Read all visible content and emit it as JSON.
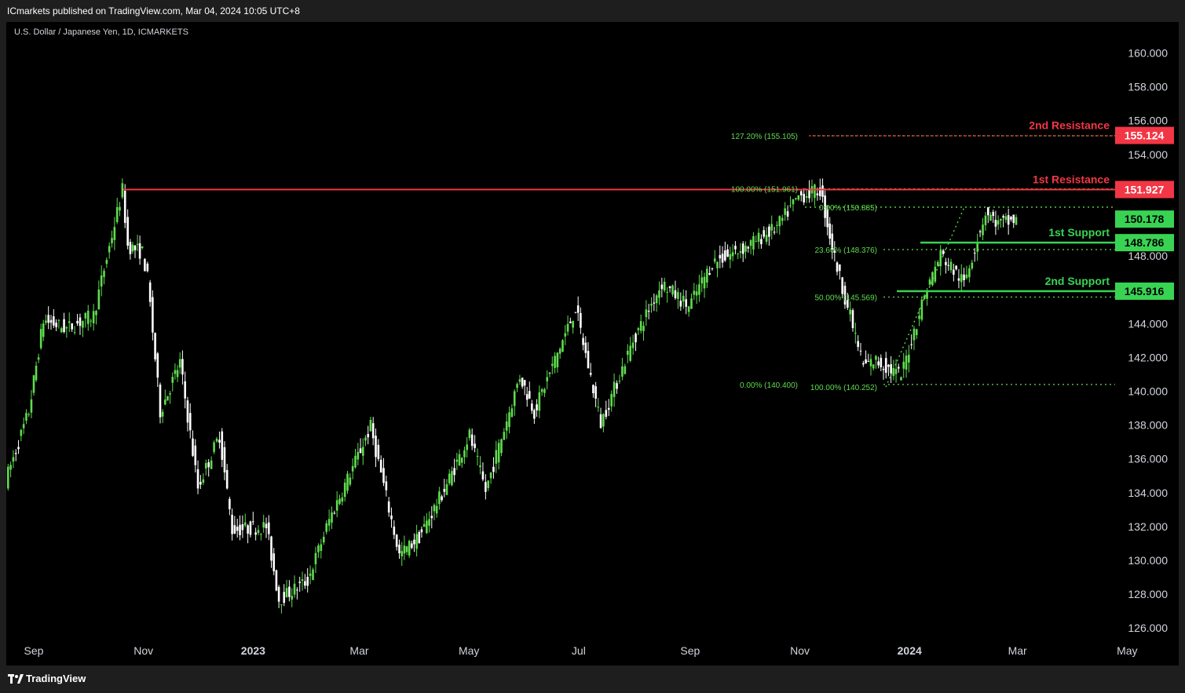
{
  "header": {
    "published": "ICmarkets published on TradingView.com, Mar 04, 2024 10:05 UTC+8"
  },
  "symbol": {
    "title": "U.S. Dollar / Japanese Yen, 1D, ICMARKETS"
  },
  "footer": {
    "brand": "TradingView"
  },
  "colors": {
    "background": "#000000",
    "bull": "#5fdc4e",
    "bear": "#ffffff",
    "resistance": "#f23645",
    "support": "#39d353",
    "fib": "#5fdc4e"
  },
  "chart_data": {
    "type": "candlestick",
    "title": "U.S. Dollar / Japanese Yen, 1D, ICMARKETS",
    "ylim": [
      125.0,
      162.0
    ],
    "y_ticks": [
      "160.000",
      "158.000",
      "156.000",
      "154.000",
      "152.000",
      "150.000",
      "148.000",
      "146.000",
      "144.000",
      "142.000",
      "140.000",
      "138.000",
      "136.000",
      "134.000",
      "132.000",
      "130.000",
      "128.000",
      "126.000"
    ],
    "x_ticks": [
      {
        "label": "Sep",
        "bold": false
      },
      {
        "label": "Nov",
        "bold": false
      },
      {
        "label": "2023",
        "bold": true
      },
      {
        "label": "Mar",
        "bold": false
      },
      {
        "label": "May",
        "bold": false
      },
      {
        "label": "Jul",
        "bold": false
      },
      {
        "label": "Sep",
        "bold": false
      },
      {
        "label": "Nov",
        "bold": false
      },
      {
        "label": "2024",
        "bold": true
      },
      {
        "label": "Mar",
        "bold": false
      },
      {
        "label": "May",
        "bold": false
      }
    ],
    "price_path": [
      [
        "2022-08-17",
        134.7
      ],
      [
        "2022-08-30",
        138.8
      ],
      [
        "2022-09-07",
        144.2
      ],
      [
        "2022-09-20",
        143.7
      ],
      [
        "2022-10-05",
        144.5
      ],
      [
        "2022-10-21",
        151.9
      ],
      [
        "2022-10-24",
        148.6
      ],
      [
        "2022-11-01",
        148.2
      ],
      [
        "2022-11-04",
        146.7
      ],
      [
        "2022-11-11",
        138.8
      ],
      [
        "2022-11-22",
        141.7
      ],
      [
        "2022-12-02",
        134.3
      ],
      [
        "2022-12-14",
        137.4
      ],
      [
        "2022-12-21",
        131.8
      ],
      [
        "2023-01-09",
        132.0
      ],
      [
        "2023-01-16",
        127.7
      ],
      [
        "2023-02-01",
        128.8
      ],
      [
        "2023-02-13",
        132.4
      ],
      [
        "2023-03-01",
        136.2
      ],
      [
        "2023-03-08",
        137.9
      ],
      [
        "2023-03-24",
        130.3
      ],
      [
        "2023-04-04",
        131.4
      ],
      [
        "2023-04-18",
        134.2
      ],
      [
        "2023-05-02",
        137.4
      ],
      [
        "2023-05-11",
        134.1
      ],
      [
        "2023-05-30",
        140.9
      ],
      [
        "2023-06-07",
        138.8
      ],
      [
        "2023-06-30",
        144.9
      ],
      [
        "2023-07-14",
        138.1
      ],
      [
        "2023-08-01",
        143.0
      ],
      [
        "2023-08-17",
        146.4
      ],
      [
        "2023-09-01",
        145.0
      ],
      [
        "2023-09-14",
        147.6
      ],
      [
        "2023-10-04",
        148.6
      ],
      [
        "2023-10-20",
        149.7
      ],
      [
        "2023-11-01",
        151.5
      ],
      [
        "2023-11-13",
        151.9
      ],
      [
        "2023-11-21",
        147.9
      ],
      [
        "2023-12-07",
        141.5
      ],
      [
        "2023-12-14",
        141.8
      ],
      [
        "2023-12-28",
        140.9
      ],
      [
        "2024-01-10",
        145.7
      ],
      [
        "2024-01-19",
        148.1
      ],
      [
        "2024-02-01",
        146.4
      ],
      [
        "2024-02-13",
        150.6
      ],
      [
        "2024-02-20",
        149.9
      ],
      [
        "2024-03-01",
        150.1
      ]
    ],
    "levels": [
      {
        "name": "2nd Resistance",
        "value": 155.124,
        "label": "155.124",
        "kind": "resistance"
      },
      {
        "name": "1st Resistance",
        "value": 151.927,
        "label": "151.927",
        "kind": "resistance"
      },
      {
        "name": "",
        "value": 150.178,
        "label": "150.178",
        "kind": "last"
      },
      {
        "name": "1st Support",
        "value": 148.786,
        "label": "148.786",
        "kind": "support"
      },
      {
        "name": "2nd Support",
        "value": 145.916,
        "label": "145.916",
        "kind": "support"
      }
    ],
    "fib_labels": [
      {
        "text": "127.20% (155.105)",
        "value": 155.105
      },
      {
        "text": "100.00% (151.961)",
        "value": 151.961
      },
      {
        "text": "0.00% (150.885)",
        "value": 150.885
      },
      {
        "text": "23.60% (148.376)",
        "value": 148.376
      },
      {
        "text": "50.00% (145.569)",
        "value": 145.569
      },
      {
        "text": "0.00% (140.400)",
        "value": 140.4
      },
      {
        "text": "100.00% (140.252)",
        "value": 140.252
      }
    ]
  }
}
